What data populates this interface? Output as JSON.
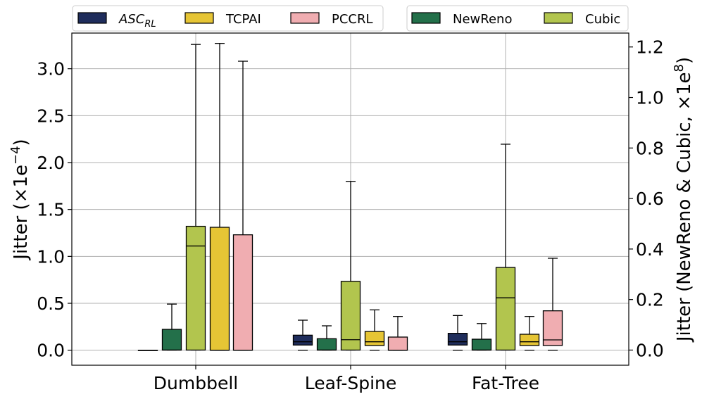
{
  "chart_data": {
    "type": "boxplot",
    "categories": [
      "Dumbbell",
      "Leaf-Spine",
      "Fat-Tree"
    ],
    "ylabel_left": "Jitter (×1e⁻⁴)",
    "ylabel_left_parts": {
      "base": "Jitter (×1e",
      "exp": "−4",
      "close": ")"
    },
    "ylabel_right": "Jitter (NewReno & Cubic, ×1e⁸)",
    "ylabel_right_parts": {
      "base": "Jitter (NewReno & Cubic, ×1e",
      "exp": "8",
      "close": ")"
    },
    "ylim_left": [
      -0.16,
      3.38
    ],
    "ylim_right": [
      -0.06,
      1.255
    ],
    "yticks_left": [
      "0.0",
      "0.5",
      "1.0",
      "1.5",
      "2.0",
      "2.5",
      "3.0"
    ],
    "yticks_right": [
      "0.0",
      "0.2",
      "0.4",
      "0.6",
      "0.8",
      "1.0",
      "1.2"
    ],
    "grid": true,
    "legend_left": [
      {
        "label": "ASC",
        "sub": "RL",
        "color": "#1f2d5c"
      },
      {
        "label": "TCPAI",
        "color": "#e6c535"
      },
      {
        "label": "PCCRL",
        "color": "#f0adb1"
      }
    ],
    "legend_right": [
      {
        "label": "NewReno",
        "color": "#23704a"
      },
      {
        "label": "Cubic",
        "color": "#b2c54e"
      }
    ],
    "series": [
      {
        "name": "ASC_RL",
        "axis": "left",
        "color": "#1f2d5c",
        "stats": [
          {
            "whislo": 0.0,
            "q1": 0.0,
            "med": 0.0,
            "q3": 0.0,
            "whishi": 0.0
          },
          {
            "whislo": 0.0,
            "q1": 0.055,
            "med": 0.09,
            "q3": 0.16,
            "whishi": 0.32
          },
          {
            "whislo": 0.0,
            "q1": 0.055,
            "med": 0.09,
            "q3": 0.18,
            "whishi": 0.37
          }
        ]
      },
      {
        "name": "NewReno",
        "axis": "right",
        "color": "#23704a",
        "stats": [
          {
            "whislo": 0.0,
            "q1": 0.0,
            "med": 0.0,
            "q3": 0.082,
            "whishi": 0.182
          },
          {
            "whislo": 0.0,
            "q1": 0.0,
            "med": 0.0,
            "q3": 0.045,
            "whishi": 0.096
          },
          {
            "whislo": 0.0,
            "q1": 0.0,
            "med": 0.0,
            "q3": 0.043,
            "whishi": 0.105
          }
        ]
      },
      {
        "name": "Cubic",
        "axis": "right",
        "color": "#b2c54e",
        "stats": [
          {
            "whislo": 0.0,
            "q1": 0.0,
            "med": 0.412,
            "q3": 0.49,
            "whishi": 1.21
          },
          {
            "whislo": 0.0,
            "q1": 0.0,
            "med": 0.041,
            "q3": 0.272,
            "whishi": 0.668
          },
          {
            "whislo": 0.0,
            "q1": 0.0,
            "med": 0.207,
            "q3": 0.327,
            "whishi": 0.815
          }
        ]
      },
      {
        "name": "TCPAI",
        "axis": "left",
        "color": "#e6c535",
        "stats": [
          {
            "whislo": 0.0,
            "q1": 0.0,
            "med": 0.0,
            "q3": 1.31,
            "whishi": 3.27
          },
          {
            "whislo": 0.0,
            "q1": 0.05,
            "med": 0.09,
            "q3": 0.2,
            "whishi": 0.43
          },
          {
            "whislo": 0.0,
            "q1": 0.05,
            "med": 0.09,
            "q3": 0.17,
            "whishi": 0.36
          }
        ]
      },
      {
        "name": "PCCRL",
        "axis": "left",
        "color": "#f0adb1",
        "stats": [
          {
            "whislo": 0.0,
            "q1": 0.0,
            "med": 0.0,
            "q3": 1.23,
            "whishi": 3.08
          },
          {
            "whislo": 0.0,
            "q1": 0.0,
            "med": 0.0,
            "q3": 0.14,
            "whishi": 0.36
          },
          {
            "whislo": 0.0,
            "q1": 0.05,
            "med": 0.11,
            "q3": 0.42,
            "whishi": 0.98
          }
        ]
      }
    ]
  }
}
